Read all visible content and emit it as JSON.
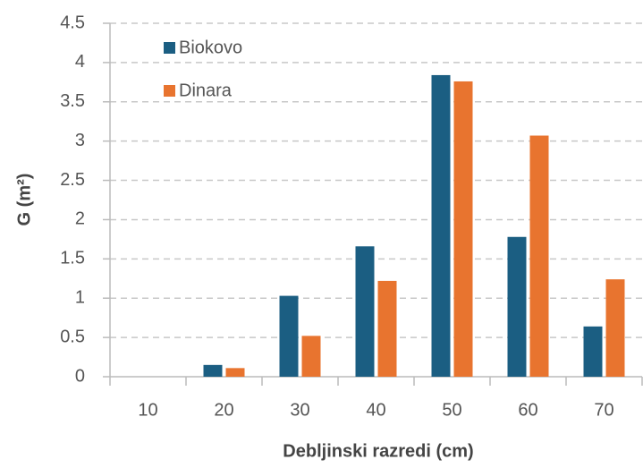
{
  "chart_data": {
    "type": "bar",
    "xlabel": "Debljinski razredi (cm)",
    "ylabel": "G (m²)",
    "categories": [
      "10",
      "20",
      "30",
      "40",
      "50",
      "60",
      "70"
    ],
    "series": [
      {
        "name": "Biokovo",
        "color": "#1b5e82",
        "values": [
          0,
          0.15,
          1.03,
          1.66,
          3.84,
          1.78,
          0.64
        ]
      },
      {
        "name": "Dinara",
        "color": "#e8742f",
        "values": [
          0,
          0.11,
          0.52,
          1.22,
          3.76,
          3.07,
          1.24
        ]
      }
    ],
    "ylim": [
      0,
      4.5
    ],
    "yticks": [
      0,
      0.5,
      1,
      1.5,
      2,
      2.5,
      3,
      3.5,
      4,
      4.5
    ],
    "grid": true,
    "legend": "upper left"
  }
}
